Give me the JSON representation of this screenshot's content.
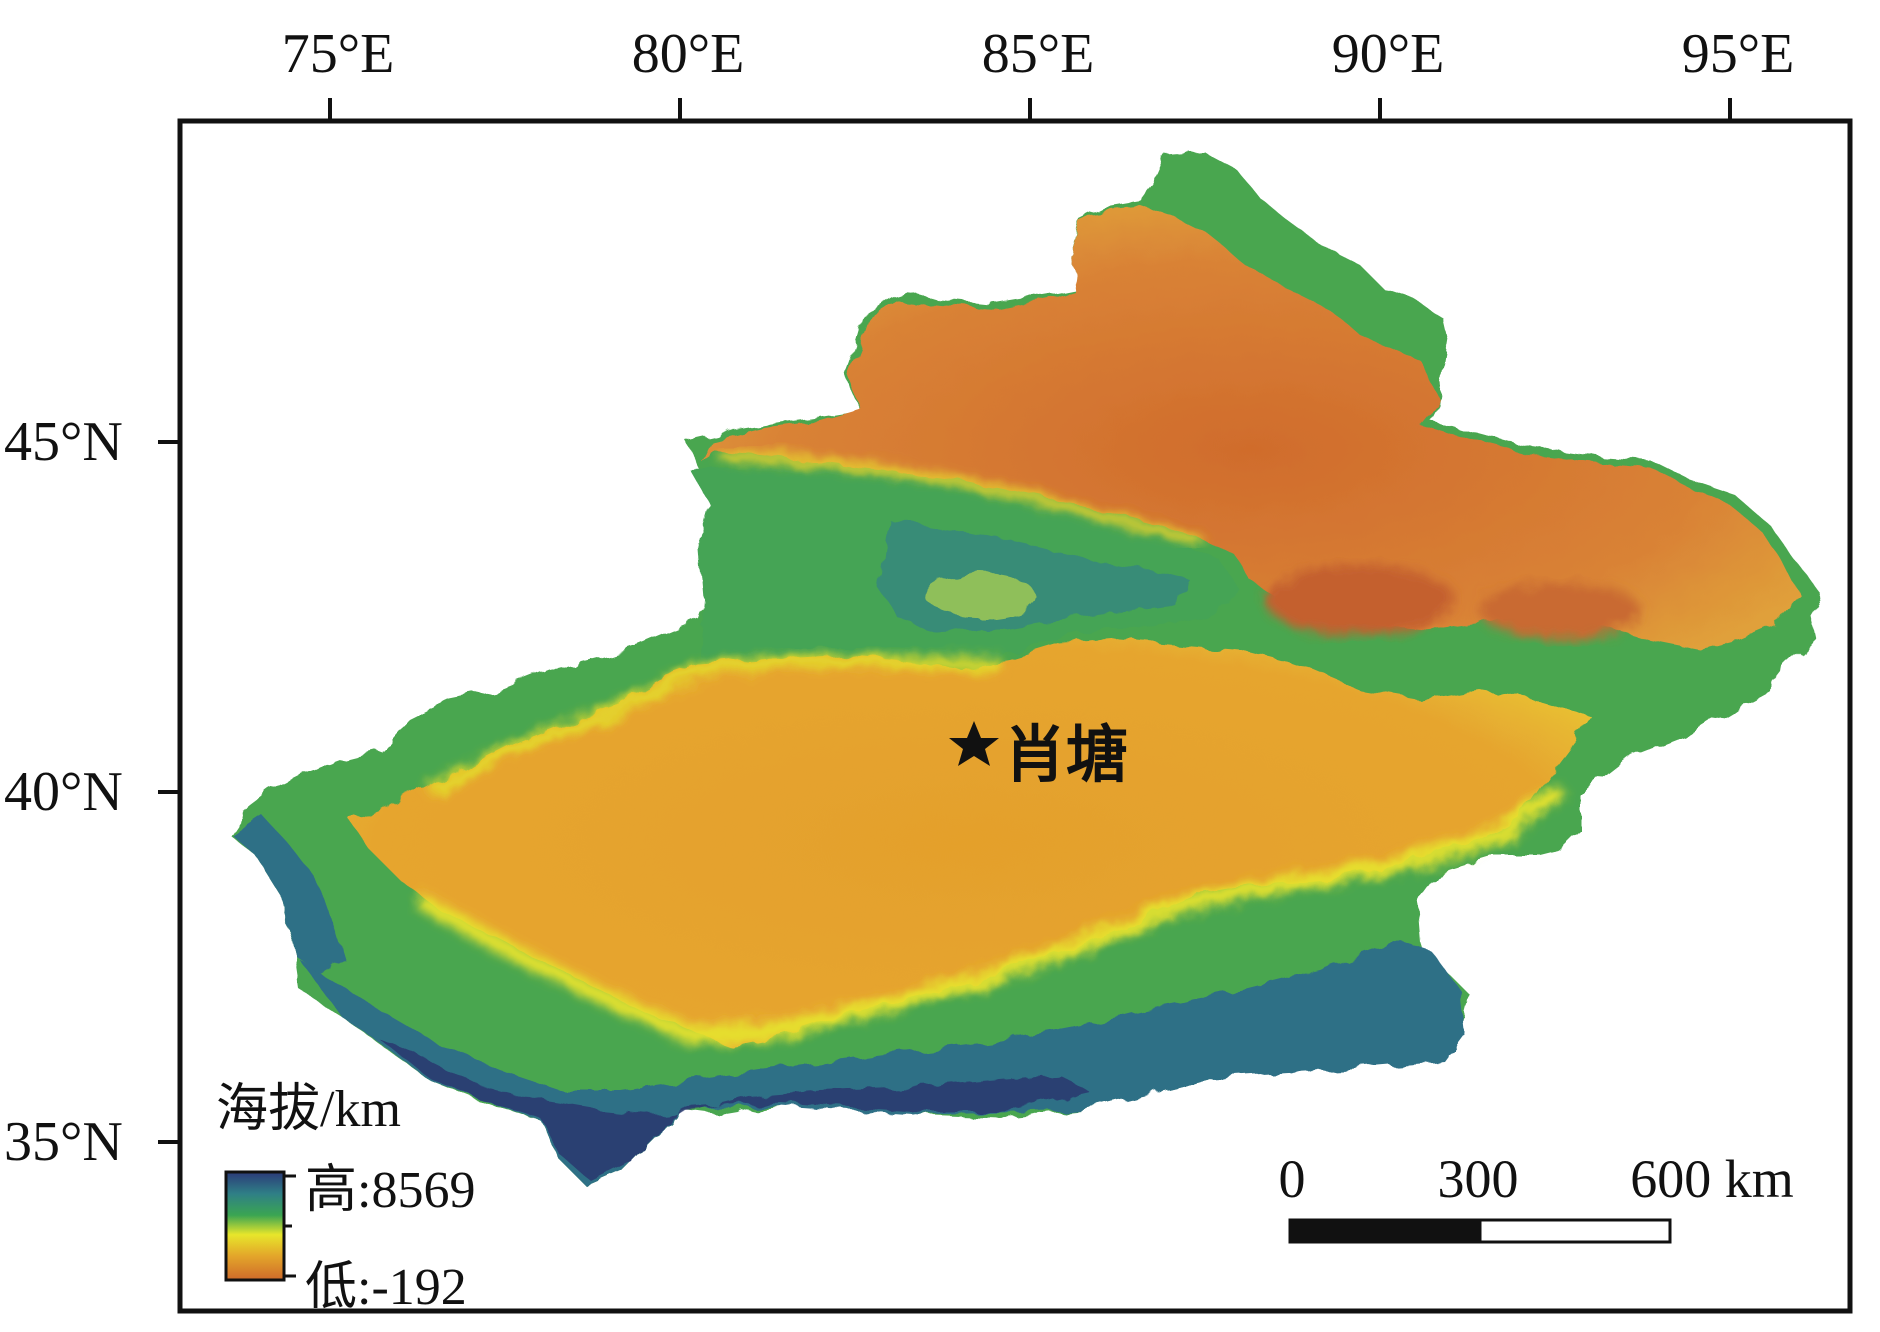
{
  "map": {
    "lon_labels": [
      "75°E",
      "80°E",
      "85°E",
      "90°E",
      "95°E"
    ],
    "lat_labels": [
      "45°N",
      "40°N",
      "35°N"
    ],
    "place_name": "肖塘",
    "marker_icon": "star-icon"
  },
  "legend": {
    "title": "海拔/km",
    "high_label": "高:8569",
    "low_label": "低:-192",
    "colors": [
      "#2b3a78",
      "#2f7f86",
      "#3aa552",
      "#e7e62b",
      "#e3a52a",
      "#cf6a2a"
    ]
  },
  "scale_bar": {
    "labels": [
      "0",
      "300",
      "600 km"
    ]
  },
  "colors": {
    "desert": "#e3a130",
    "basin_low": "#d07a30",
    "mountain_green": "#47a84e",
    "mountain_teal": "#2f7f86",
    "mountain_high": "#2a3c70",
    "foothill_yellow": "#e4e22e"
  }
}
